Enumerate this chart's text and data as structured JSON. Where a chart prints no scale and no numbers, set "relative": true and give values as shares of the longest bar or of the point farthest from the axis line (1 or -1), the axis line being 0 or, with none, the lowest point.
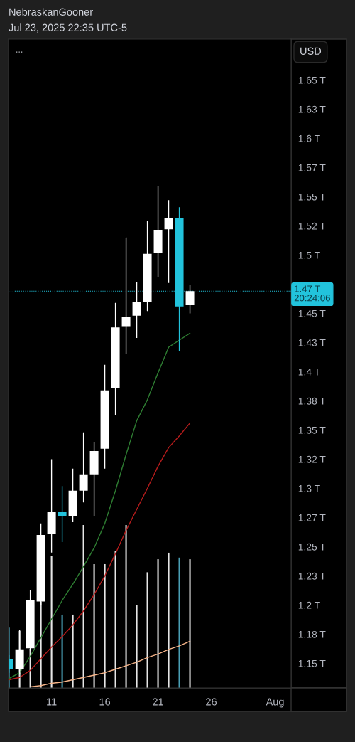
{
  "chart_data": [
    {
      "type": "candlestick",
      "title": "NebraskanGooner",
      "subtitle": "Jul 23, 2025 22:35 UTC-5",
      "ylabel": "USD",
      "annotations": [
        "..."
      ],
      "x": [
        "2025-07-07",
        "2025-07-08",
        "2025-07-09",
        "2025-07-10",
        "2025-07-11",
        "2025-07-12",
        "2025-07-13",
        "2025-07-14",
        "2025-07-15",
        "2025-07-16",
        "2025-07-17",
        "2025-07-18",
        "2025-07-19",
        "2025-07-20",
        "2025-07-21",
        "2025-07-22",
        "2025-07-23",
        "2025-07-24"
      ],
      "ohlc": [
        [
          1.154,
          1.157,
          1.142,
          1.145
        ],
        [
          1.145,
          1.179,
          1.141,
          1.162
        ],
        [
          1.163,
          1.213,
          1.161,
          1.204
        ],
        [
          1.203,
          1.27,
          1.2,
          1.26
        ],
        [
          1.261,
          1.325,
          1.245,
          1.28
        ],
        [
          1.28,
          1.302,
          1.254,
          1.276
        ],
        [
          1.276,
          1.317,
          1.271,
          1.298
        ],
        [
          1.298,
          1.348,
          1.288,
          1.312
        ],
        [
          1.312,
          1.34,
          1.276,
          1.332
        ],
        [
          1.334,
          1.406,
          1.317,
          1.384
        ],
        [
          1.386,
          1.459,
          1.363,
          1.438
        ],
        [
          1.439,
          1.515,
          1.415,
          1.447
        ],
        [
          1.448,
          1.477,
          1.429,
          1.46
        ],
        [
          1.46,
          1.529,
          1.452,
          1.501
        ],
        [
          1.502,
          1.559,
          1.481,
          1.521
        ],
        [
          1.522,
          1.547,
          1.476,
          1.532
        ],
        [
          1.532,
          1.541,
          1.418,
          1.456
        ],
        [
          1.457,
          1.474,
          1.45,
          1.469
        ]
      ],
      "colors": [
        "#22c3dc",
        "#ffffff",
        "#ffffff",
        "#ffffff",
        "#ffffff",
        "#22c3dc",
        "#ffffff",
        "#ffffff",
        "#ffffff",
        "#ffffff",
        "#ffffff",
        "#ffffff",
        "#ffffff",
        "#ffffff",
        "#ffffff",
        "#ffffff",
        "#22c3dc",
        "#ffffff"
      ],
      "series": [
        {
          "type": "line",
          "color": "#2e7d32",
          "values": [
            1.137,
            1.142,
            1.156,
            1.172,
            1.188,
            1.204,
            1.218,
            1.233,
            1.249,
            1.27,
            1.298,
            1.329,
            1.358,
            1.376,
            1.399,
            1.421,
            1.427,
            1.433
          ]
        },
        {
          "type": "line",
          "color": "#b71c1c",
          "values": [
            1.136,
            1.138,
            1.144,
            1.154,
            1.164,
            1.173,
            1.183,
            1.195,
            1.209,
            1.225,
            1.244,
            1.264,
            1.282,
            1.3,
            1.319,
            1.335,
            1.345,
            1.356
          ]
        },
        {
          "type": "line",
          "color": "#f7b58a",
          "values": [
            null,
            null,
            1.13,
            1.131,
            1.133,
            1.134,
            1.136,
            1.138,
            1.14,
            1.142,
            1.145,
            1.148,
            1.151,
            1.155,
            1.158,
            1.162,
            1.165,
            1.169
          ]
        }
      ],
      "xlim": [
        "2025-07-06T23:00",
        "2025-08-02T12:00"
      ],
      "xticks": [
        {
          "value": "2025-07-11",
          "label": "11"
        },
        {
          "value": "2025-07-16",
          "label": "16"
        },
        {
          "value": "2025-07-21",
          "label": "21"
        },
        {
          "value": "2025-07-26",
          "label": "26"
        },
        {
          "value": "2025-08-01",
          "label": "Aug"
        }
      ],
      "ylim": [
        1.129,
        1.685
      ],
      "yticks": [
        {
          "value": 1.15,
          "label": "1.15 T"
        },
        {
          "value": 1.175,
          "label": "1.18 T"
        },
        {
          "value": 1.2,
          "label": "1.2 T"
        },
        {
          "value": 1.225,
          "label": "1.23 T"
        },
        {
          "value": 1.25,
          "label": "1.25 T"
        },
        {
          "value": 1.275,
          "label": "1.27 T"
        },
        {
          "value": 1.3,
          "label": "1.3 T"
        },
        {
          "value": 1.325,
          "label": "1.32 T"
        },
        {
          "value": 1.35,
          "label": "1.35 T"
        },
        {
          "value": 1.375,
          "label": "1.38 T"
        },
        {
          "value": 1.4,
          "label": "1.4 T"
        },
        {
          "value": 1.425,
          "label": "1.43 T"
        },
        {
          "value": 1.45,
          "label": "1.45 T"
        },
        {
          "value": 1.5,
          "label": "1.5 T"
        },
        {
          "value": 1.525,
          "label": "1.52 T"
        },
        {
          "value": 1.55,
          "label": "1.55 T"
        },
        {
          "value": 1.575,
          "label": "1.57 T"
        },
        {
          "value": 1.6,
          "label": "1.6 T"
        },
        {
          "value": 1.625,
          "label": "1.63 T"
        },
        {
          "value": 1.65,
          "label": "1.65 T"
        }
      ],
      "ref_lines": [
        {
          "axis": "y",
          "value": 1.469,
          "label": "1.47 T\n20:24:06",
          "color": "#22c3dc",
          "line_style": "dotted"
        }
      ]
    },
    {
      "type": "bar",
      "relative": true,
      "tick_labels": false,
      "x": [
        "2025-07-07",
        "2025-07-08",
        "2025-07-09",
        "2025-07-10",
        "2025-07-11",
        "2025-07-12",
        "2025-07-13",
        "2025-07-14",
        "2025-07-15",
        "2025-07-16",
        "2025-07-17",
        "2025-07-18",
        "2025-07-19",
        "2025-07-20",
        "2025-07-21",
        "2025-07-22",
        "2025-07-23",
        "2025-07-24"
      ],
      "xlim": [
        "2025-07-06T23:00",
        "2025-08-02T12:00"
      ],
      "colors": [
        "#4a9fb5",
        "#e6e6e6",
        "#e6e6e6",
        "#e6e6e6",
        "#e6e6e6",
        "#4a9fb5",
        "#e6e6e6",
        "#e6e6e6",
        "#e6e6e6",
        "#e6e6e6",
        "#e6e6e6",
        "#e6e6e6",
        "#e6e6e6",
        "#e6e6e6",
        "#e6e6e6",
        "#e6e6e6",
        "#4a9fb5",
        "#e6e6e6"
      ],
      "values": [
        0.37,
        0.35,
        0.24,
        0.53,
        0.81,
        0.45,
        0.45,
        1.0,
        0.76,
        0.76,
        0.84,
        1.0,
        0.51,
        0.71,
        0.79,
        0.83,
        0.8,
        0.79
      ]
    }
  ]
}
